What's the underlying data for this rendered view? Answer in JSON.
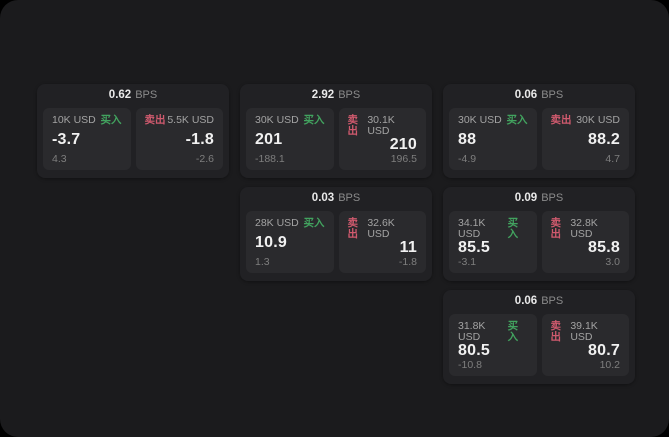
{
  "labels": {
    "bps_unit": "BPS",
    "buy": "买入",
    "sell": "卖出"
  },
  "colors": {
    "buy_green": "#42a35f",
    "sell_red": "#d05a6e",
    "panel_background": "#1b1b1d",
    "card_background": "#212124",
    "tile_background": "#2a2a2d"
  },
  "cards": [
    {
      "bps": "0.62",
      "grid": {
        "row": 1,
        "col": 1
      },
      "buy": {
        "amount": "10K USD",
        "price": "-3.7",
        "change": "4.3"
      },
      "sell": {
        "amount": "5.5K USD",
        "price": "-1.8",
        "change": "-2.6"
      }
    },
    {
      "bps": "2.92",
      "grid": {
        "row": 1,
        "col": 2
      },
      "buy": {
        "amount": "30K USD",
        "price": "201",
        "change": "-188.1"
      },
      "sell": {
        "amount": "30.1K USD",
        "price": "210",
        "change": "196.5"
      }
    },
    {
      "bps": "0.06",
      "grid": {
        "row": 1,
        "col": 3
      },
      "buy": {
        "amount": "30K USD",
        "price": "88",
        "change": "-4.9"
      },
      "sell": {
        "amount": "30K USD",
        "price": "88.2",
        "change": "4.7"
      }
    },
    {
      "bps": "0.03",
      "grid": {
        "row": 2,
        "col": 2
      },
      "buy": {
        "amount": "28K USD",
        "price": "10.9",
        "change": "1.3"
      },
      "sell": {
        "amount": "32.6K USD",
        "price": "11",
        "change": "-1.8"
      }
    },
    {
      "bps": "0.09",
      "grid": {
        "row": 2,
        "col": 3
      },
      "buy": {
        "amount": "34.1K USD",
        "price": "85.5",
        "change": "-3.1"
      },
      "sell": {
        "amount": "32.8K USD",
        "price": "85.8",
        "change": "3.0"
      }
    },
    {
      "bps": "0.06",
      "grid": {
        "row": 3,
        "col": 3
      },
      "buy": {
        "amount": "31.8K USD",
        "price": "80.5",
        "change": "-10.8"
      },
      "sell": {
        "amount": "39.1K USD",
        "price": "80.7",
        "change": "10.2"
      }
    }
  ]
}
